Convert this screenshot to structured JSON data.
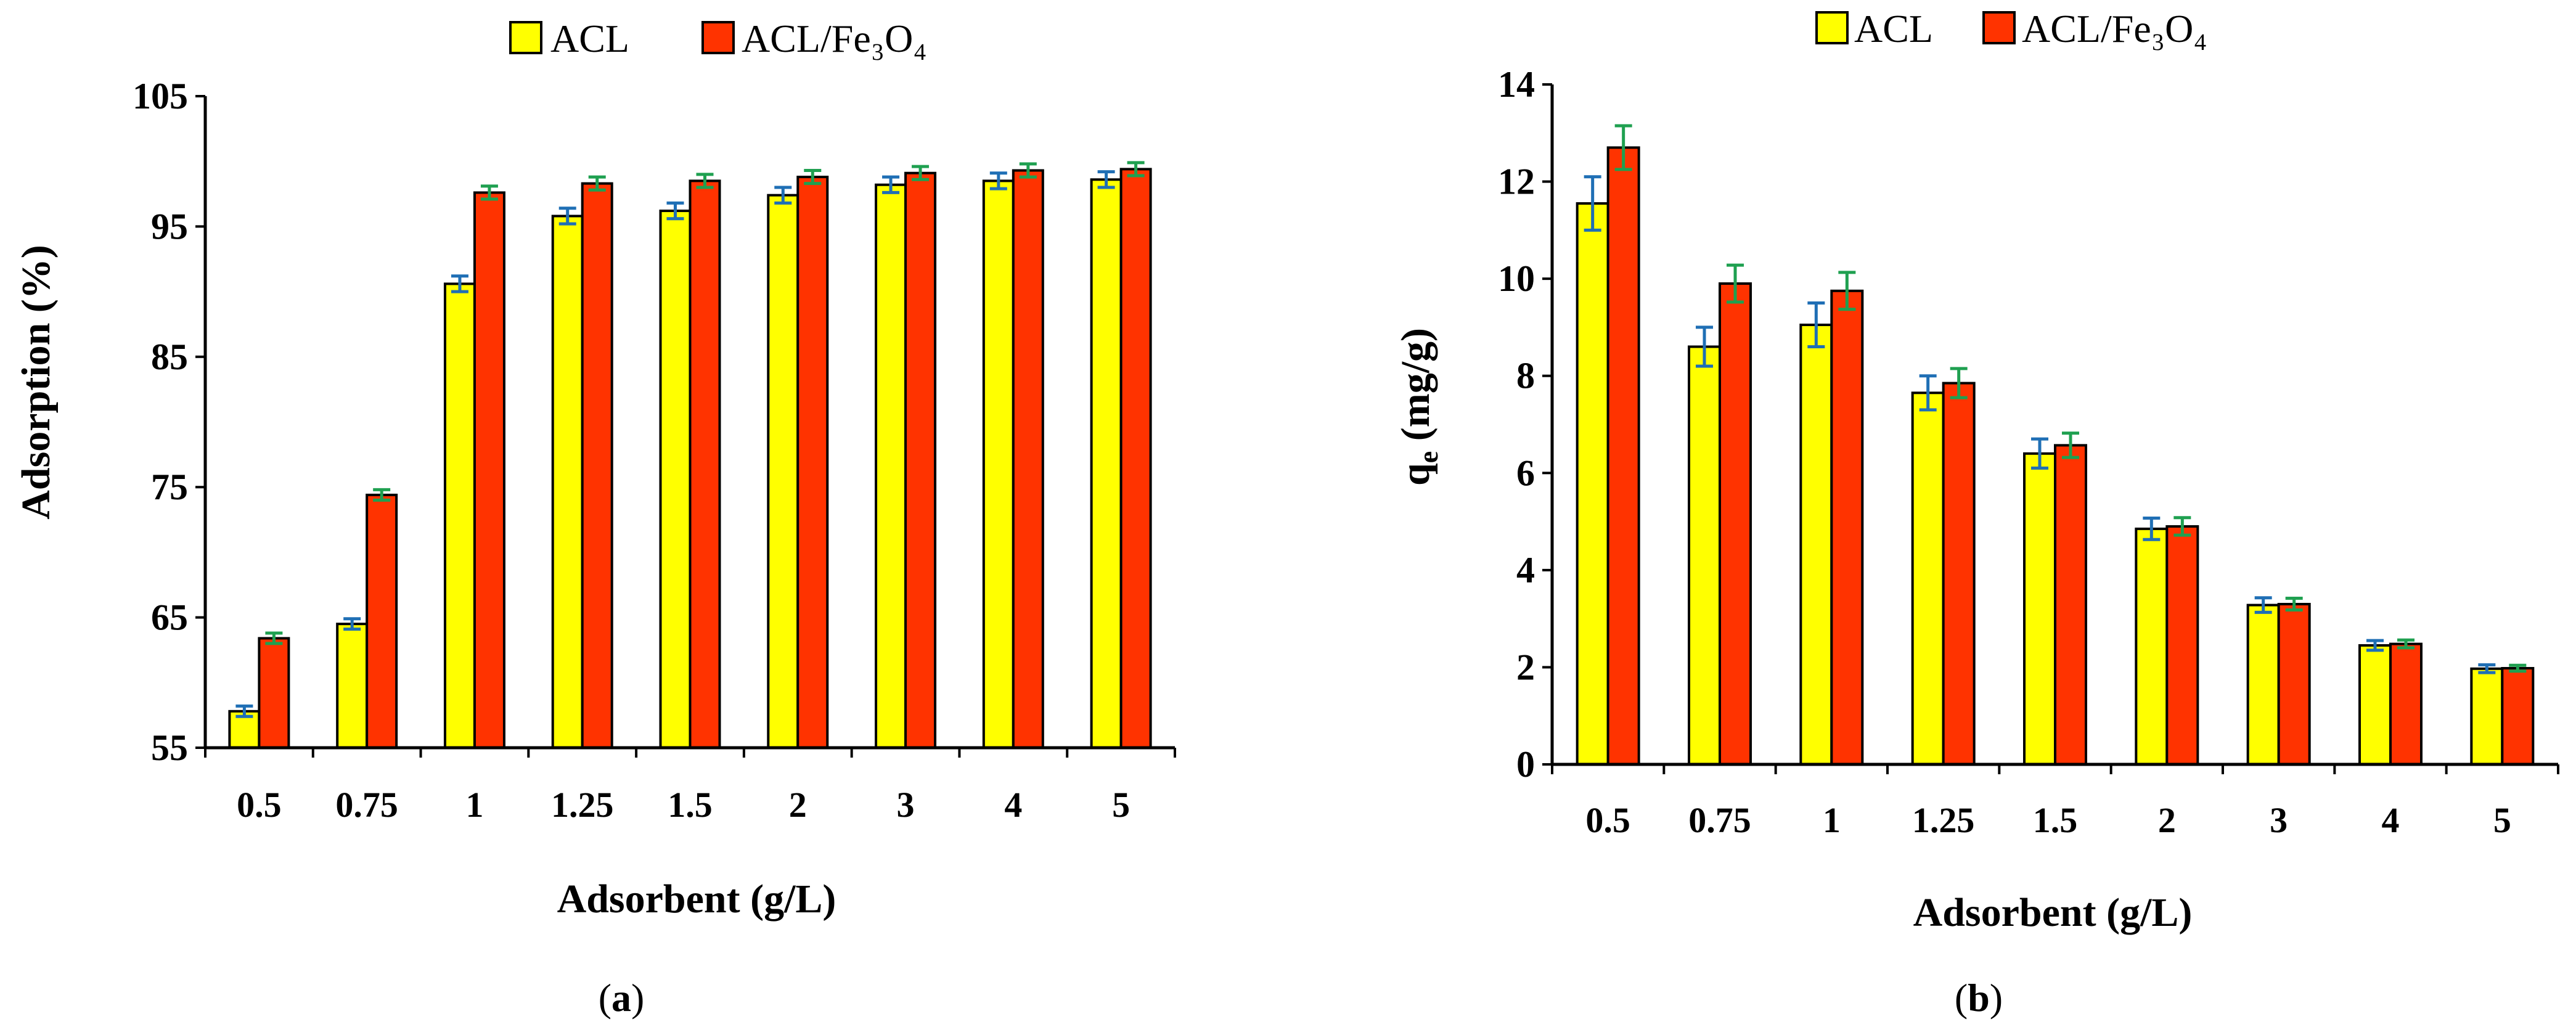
{
  "colors": {
    "acl_fill": "#FFFF00",
    "fe_fill": "#FF3300",
    "bar_stroke": "#000000",
    "acl_errorbar": "#1F6FB5",
    "fe_errorbar": "#1FA050",
    "axis": "#000000"
  },
  "chart_data": [
    {
      "type": "bar",
      "panel_label": "(a)",
      "panel_label_letter": "a",
      "legend": [
        {
          "key": "acl",
          "label": "ACL"
        },
        {
          "key": "fe",
          "label": "ACL/Fe₃O₄"
        }
      ],
      "legend_position": "top-center",
      "xlabel": "Adsorbent (g/L)",
      "ylabel": "Adsorption (%)",
      "ylim": [
        55,
        105
      ],
      "yticks": [
        "55",
        "65",
        "75",
        "85",
        "95",
        "105"
      ],
      "categories": [
        "0.5",
        "0.75",
        "1",
        "1.25",
        "1.5",
        "2",
        "3",
        "4",
        "5"
      ],
      "series": [
        {
          "key": "acl",
          "name": "ACL",
          "values": [
            57.8,
            64.5,
            90.6,
            95.8,
            96.2,
            97.4,
            98.2,
            98.5,
            98.6
          ],
          "errors": [
            0.4,
            0.4,
            0.6,
            0.6,
            0.6,
            0.6,
            0.6,
            0.6,
            0.6
          ]
        },
        {
          "key": "fe",
          "name": "ACL/Fe₃O₄",
          "values": [
            63.4,
            74.4,
            97.6,
            98.3,
            98.5,
            98.8,
            99.1,
            99.3,
            99.4
          ],
          "errors": [
            0.4,
            0.4,
            0.5,
            0.5,
            0.5,
            0.5,
            0.5,
            0.5,
            0.5
          ]
        }
      ]
    },
    {
      "type": "bar",
      "panel_label": "(b)",
      "panel_label_letter": "b",
      "legend": [
        {
          "key": "acl",
          "label": "ACL"
        },
        {
          "key": "fe",
          "label": "ACL/Fe₃O₄"
        }
      ],
      "legend_position": "top-center",
      "xlabel": "Adsorbent (g/L)",
      "ylabel_main": "q",
      "ylabel_sub": "e",
      "ylabel_rest": " (mg/g)",
      "ylim": [
        0,
        14
      ],
      "yticks": [
        "0",
        "2",
        "4",
        "6",
        "8",
        "10",
        "12",
        "14"
      ],
      "categories": [
        "0.5",
        "0.75",
        "1",
        "1.25",
        "1.5",
        "2",
        "3",
        "4",
        "5"
      ],
      "series": [
        {
          "key": "acl",
          "name": "ACL",
          "values": [
            11.55,
            8.6,
            9.05,
            7.65,
            6.4,
            4.85,
            3.28,
            2.45,
            1.97
          ],
          "errors": [
            0.55,
            0.4,
            0.45,
            0.35,
            0.3,
            0.22,
            0.15,
            0.1,
            0.08
          ]
        },
        {
          "key": "fe",
          "name": "ACL/Fe₃O₄",
          "values": [
            12.7,
            9.9,
            9.75,
            7.85,
            6.57,
            4.9,
            3.3,
            2.48,
            1.98
          ],
          "errors": [
            0.45,
            0.38,
            0.38,
            0.3,
            0.25,
            0.18,
            0.12,
            0.08,
            0.06
          ]
        }
      ]
    }
  ]
}
